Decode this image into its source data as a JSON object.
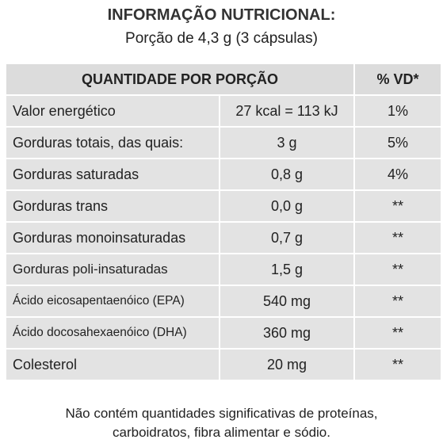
{
  "header": {
    "title": "INFORMAÇÃO NUTRICIONAL:",
    "subtitle": "Porção de 4,3 g (3 cápsulas)"
  },
  "table": {
    "columns": [
      "QUANTIDADE POR PORÇÃO",
      "% VD*"
    ],
    "rows": [
      [
        "Valor energético",
        "27 kcal = 113 kJ",
        "1%"
      ],
      [
        "Gorduras totais, das quais:",
        "3 g",
        "5%"
      ],
      [
        "Gorduras saturadas",
        "0,8 g",
        "4%"
      ],
      [
        "Gorduras trans",
        "0,0 g",
        "**"
      ],
      [
        "Gorduras monoinsaturadas",
        "0,7 g",
        "**"
      ],
      [
        "Gorduras poli-insaturadas",
        "1,5 g",
        "**"
      ],
      [
        "Ácido eicosapentaenóico (EPA)",
        "540 mg",
        "**"
      ],
      [
        "Ácido docosahexaenóico (DHA)",
        "360 mg",
        "**"
      ],
      [
        "Colesterol",
        "20 mg",
        "**"
      ]
    ]
  },
  "footer": {
    "lines": [
      "Não contém quantidades significativas de proteínas,",
      "carboidratos, fibra alimentar e sódio."
    ]
  }
}
